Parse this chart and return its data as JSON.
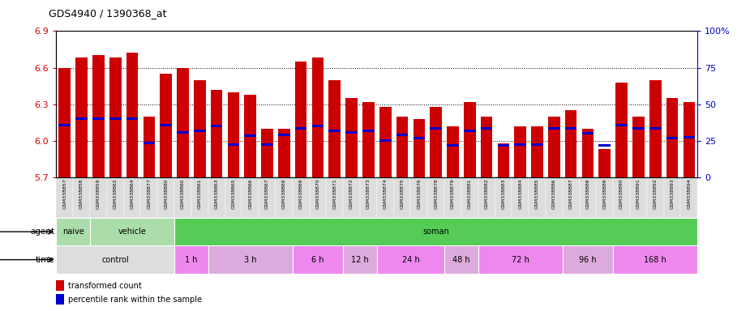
{
  "title": "GDS4940 / 1390368_at",
  "samples": [
    "GSM338857",
    "GSM338858",
    "GSM338859",
    "GSM338862",
    "GSM338864",
    "GSM338877",
    "GSM338880",
    "GSM338860",
    "GSM338861",
    "GSM338863",
    "GSM338865",
    "GSM338866",
    "GSM338867",
    "GSM338868",
    "GSM338869",
    "GSM338870",
    "GSM338871",
    "GSM338872",
    "GSM338873",
    "GSM338874",
    "GSM338875",
    "GSM338876",
    "GSM338878",
    "GSM338879",
    "GSM338881",
    "GSM338882",
    "GSM338883",
    "GSM338884",
    "GSM338885",
    "GSM338886",
    "GSM338887",
    "GSM338888",
    "GSM338889",
    "GSM338890",
    "GSM338891",
    "GSM338892",
    "GSM338893",
    "GSM338894"
  ],
  "bar_values": [
    6.6,
    6.68,
    6.7,
    6.68,
    6.72,
    6.2,
    6.55,
    6.6,
    6.5,
    6.42,
    6.4,
    6.38,
    6.1,
    6.1,
    6.65,
    6.68,
    6.5,
    6.35,
    6.32,
    6.28,
    6.2,
    6.18,
    6.28,
    6.12,
    6.32,
    6.2,
    5.98,
    6.12,
    6.12,
    6.2,
    6.25,
    6.1,
    5.93,
    6.48,
    6.2,
    6.5,
    6.35,
    6.32
  ],
  "percentile_values": [
    6.13,
    6.18,
    6.18,
    6.18,
    6.18,
    5.98,
    6.13,
    6.07,
    6.08,
    6.12,
    5.97,
    6.04,
    5.97,
    6.05,
    6.1,
    6.12,
    6.08,
    6.07,
    6.08,
    6.0,
    6.05,
    6.02,
    6.1,
    5.96,
    6.08,
    6.1,
    5.96,
    5.97,
    5.97,
    6.1,
    6.1,
    6.06,
    5.96,
    6.13,
    6.1,
    6.1,
    6.02,
    6.03
  ],
  "ymin": 5.7,
  "ymax": 6.9,
  "yticks": [
    5.7,
    6.0,
    6.3,
    6.6,
    6.9
  ],
  "ytick_labels": [
    "5.7",
    "6.0",
    "6.3",
    "6.6",
    "6.9"
  ],
  "right_yticks": [
    0,
    25,
    50,
    75,
    100
  ],
  "right_ytick_labels": [
    "0",
    "25",
    "50",
    "75",
    "100%"
  ],
  "bar_color": "#cc0000",
  "percentile_color": "#0000cc",
  "bar_width": 0.7,
  "agent_groups": [
    {
      "label": "naive",
      "start": 0,
      "end": 2,
      "color": "#aaddaa"
    },
    {
      "label": "vehicle",
      "start": 2,
      "end": 7,
      "color": "#aaddaa"
    },
    {
      "label": "soman",
      "start": 7,
      "end": 38,
      "color": "#55cc55"
    }
  ],
  "time_groups": [
    {
      "label": "control",
      "start": 0,
      "end": 7,
      "color": "#dddddd"
    },
    {
      "label": "1 h",
      "start": 7,
      "end": 9,
      "color": "#ee88ee"
    },
    {
      "label": "3 h",
      "start": 9,
      "end": 14,
      "color": "#ddaadd"
    },
    {
      "label": "6 h",
      "start": 14,
      "end": 17,
      "color": "#ee88ee"
    },
    {
      "label": "12 h",
      "start": 17,
      "end": 19,
      "color": "#ddaadd"
    },
    {
      "label": "24 h",
      "start": 19,
      "end": 23,
      "color": "#ee88ee"
    },
    {
      "label": "48 h",
      "start": 23,
      "end": 25,
      "color": "#ddaadd"
    },
    {
      "label": "72 h",
      "start": 25,
      "end": 30,
      "color": "#ee88ee"
    },
    {
      "label": "96 h",
      "start": 30,
      "end": 33,
      "color": "#ddaadd"
    },
    {
      "label": "168 h",
      "start": 33,
      "end": 38,
      "color": "#ee88ee"
    }
  ],
  "legend_items": [
    {
      "label": "transformed count",
      "color": "#cc0000"
    },
    {
      "label": "percentile rank within the sample",
      "color": "#0000cc"
    }
  ],
  "xtick_bg": "#dddddd"
}
